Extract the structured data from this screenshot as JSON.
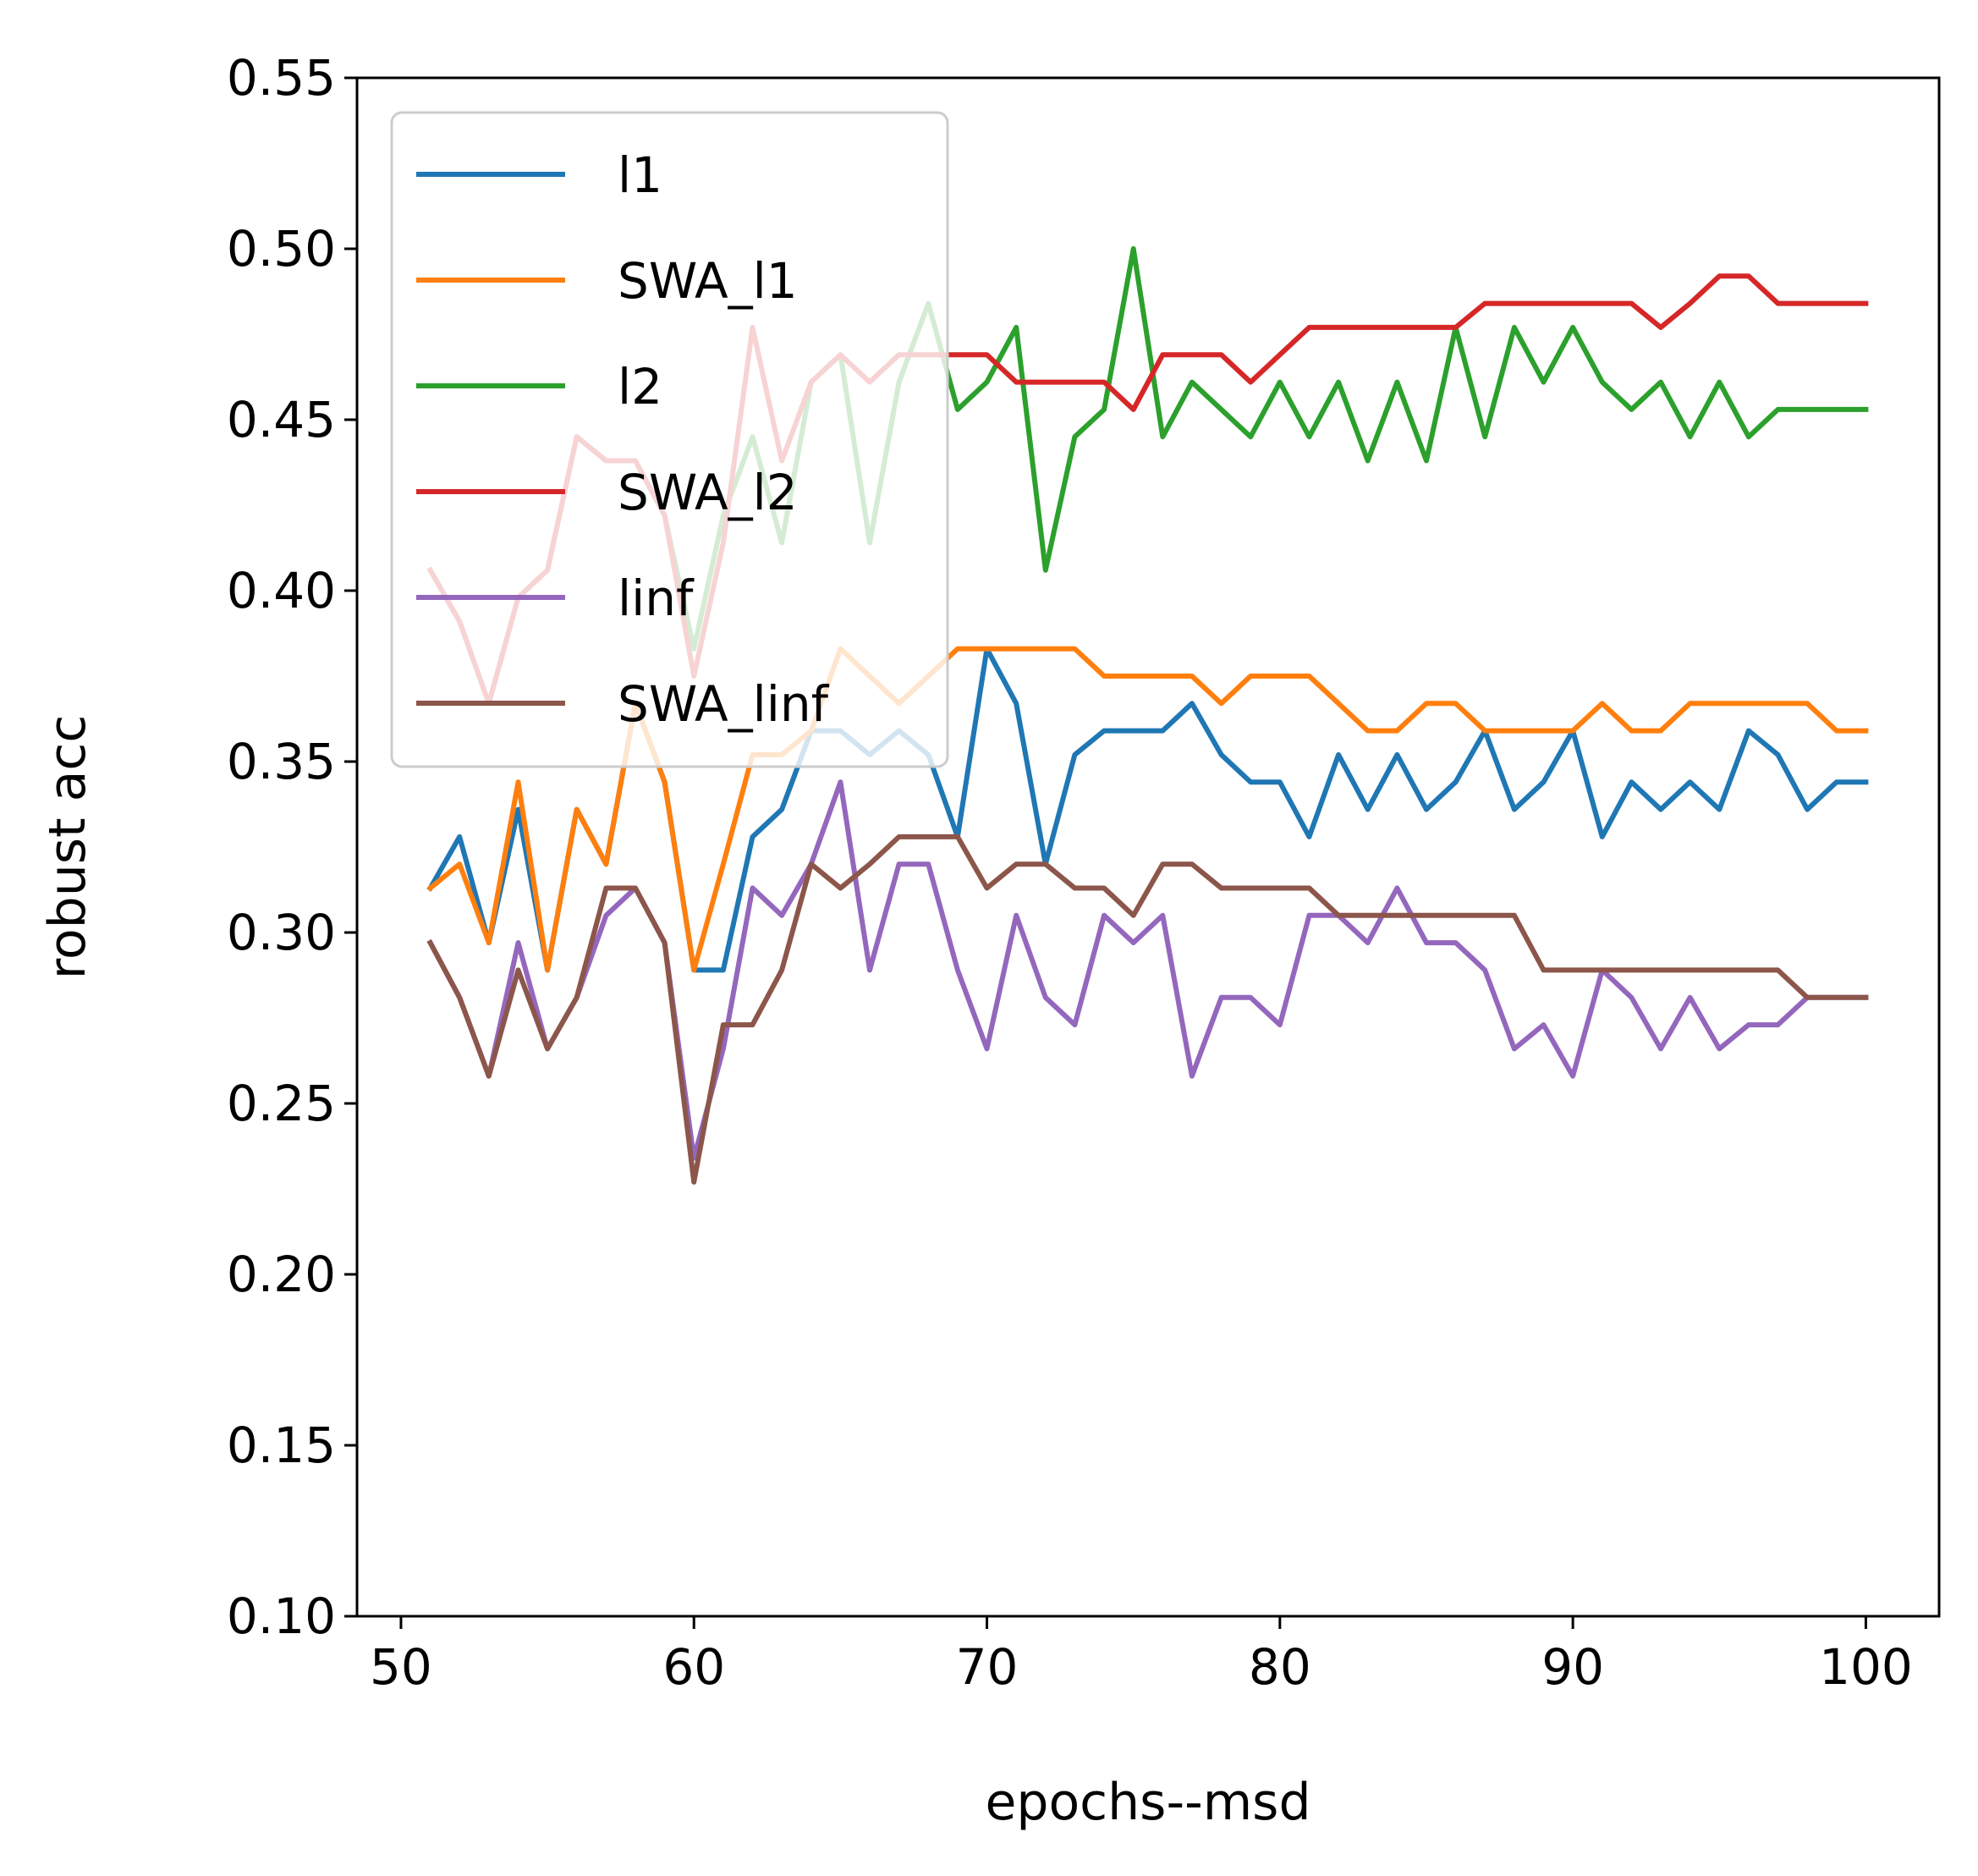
{
  "chart_data": {
    "type": "line",
    "title": "",
    "xlabel": "epochs--msd",
    "ylabel": "robust acc",
    "xlim": [
      48.5,
      102.5
    ],
    "ylim": [
      0.1,
      0.55
    ],
    "xticks": [
      50,
      60,
      70,
      80,
      90,
      100
    ],
    "xtick_labels": [
      "50",
      "60",
      "70",
      "80",
      "90",
      "100"
    ],
    "yticks": [
      0.1,
      0.15,
      0.2,
      0.25,
      0.3,
      0.35,
      0.4,
      0.45,
      0.5,
      0.55
    ],
    "ytick_labels": [
      "0.10",
      "0.15",
      "0.20",
      "0.25",
      "0.30",
      "0.35",
      "0.40",
      "0.45",
      "0.50",
      "0.55"
    ],
    "grid": false,
    "legend_position": "top-left",
    "x": [
      51,
      52,
      53,
      54,
      55,
      56,
      57,
      58,
      59,
      60,
      61,
      62,
      63,
      64,
      65,
      66,
      67,
      68,
      69,
      70,
      71,
      72,
      73,
      74,
      75,
      76,
      77,
      78,
      79,
      80,
      81,
      82,
      83,
      84,
      85,
      86,
      87,
      88,
      89,
      90,
      91,
      92,
      93,
      94,
      95,
      96,
      97,
      98,
      99,
      100
    ],
    "series": [
      {
        "name": "l1",
        "color": "#1f77b4",
        "values": [
          0.313,
          0.328,
          0.297,
          0.336,
          0.289,
          0.336,
          0.32,
          0.367,
          0.344,
          0.289,
          0.289,
          0.328,
          0.336,
          0.359,
          0.359,
          0.352,
          0.359,
          0.352,
          0.328,
          0.383,
          0.367,
          0.32,
          0.352,
          0.359,
          0.359,
          0.359,
          0.367,
          0.352,
          0.344,
          0.344,
          0.328,
          0.352,
          0.336,
          0.352,
          0.336,
          0.344,
          0.359,
          0.336,
          0.344,
          0.359,
          0.328,
          0.344,
          0.336,
          0.344,
          0.336,
          0.359,
          0.352,
          0.336,
          0.344,
          0.344
        ]
      },
      {
        "name": "SWA_l1",
        "color": "#ff7f0e",
        "values": [
          0.313,
          0.32,
          0.297,
          0.344,
          0.289,
          0.336,
          0.32,
          0.367,
          0.344,
          0.289,
          0.32,
          0.352,
          0.352,
          0.359,
          0.383,
          0.375,
          0.367,
          0.375,
          0.383,
          0.383,
          0.383,
          0.383,
          0.383,
          0.375,
          0.375,
          0.375,
          0.375,
          0.367,
          0.375,
          0.375,
          0.375,
          0.367,
          0.359,
          0.359,
          0.367,
          0.367,
          0.359,
          0.359,
          0.359,
          0.359,
          0.367,
          0.359,
          0.359,
          0.367,
          0.367,
          0.367,
          0.367,
          0.367,
          0.359,
          0.359
        ]
      },
      {
        "name": "l2",
        "color": "#2ca02c",
        "values": [
          0.406,
          0.391,
          0.367,
          0.398,
          0.406,
          0.445,
          0.438,
          0.438,
          0.422,
          0.383,
          0.422,
          0.445,
          0.414,
          0.461,
          0.469,
          0.414,
          0.461,
          0.484,
          0.453,
          0.461,
          0.477,
          0.406,
          0.445,
          0.453,
          0.5,
          0.445,
          0.461,
          0.453,
          0.445,
          0.461,
          0.445,
          0.461,
          0.438,
          0.461,
          0.438,
          0.477,
          0.445,
          0.477,
          0.461,
          0.477,
          0.461,
          0.453,
          0.461,
          0.445,
          0.461,
          0.445,
          0.453,
          0.453,
          0.453,
          0.453
        ]
      },
      {
        "name": "SWA_l2",
        "color": "#d62728",
        "values": [
          0.406,
          0.391,
          0.367,
          0.398,
          0.406,
          0.445,
          0.438,
          0.438,
          0.422,
          0.375,
          0.414,
          0.477,
          0.438,
          0.461,
          0.469,
          0.461,
          0.469,
          0.469,
          0.469,
          0.469,
          0.461,
          0.461,
          0.461,
          0.461,
          0.453,
          0.469,
          0.469,
          0.469,
          0.461,
          0.469,
          0.477,
          0.477,
          0.477,
          0.477,
          0.477,
          0.477,
          0.484,
          0.484,
          0.484,
          0.484,
          0.484,
          0.484,
          0.477,
          0.484,
          0.492,
          0.492,
          0.484,
          0.484,
          0.484,
          0.484
        ]
      },
      {
        "name": "linf",
        "color": "#9467bd",
        "values": [
          0.297,
          0.281,
          0.258,
          0.297,
          0.266,
          0.281,
          0.305,
          0.313,
          0.297,
          0.234,
          0.266,
          0.313,
          0.305,
          0.32,
          0.344,
          0.289,
          0.32,
          0.32,
          0.289,
          0.266,
          0.305,
          0.281,
          0.273,
          0.305,
          0.297,
          0.305,
          0.258,
          0.281,
          0.281,
          0.273,
          0.305,
          0.305,
          0.297,
          0.313,
          0.297,
          0.297,
          0.289,
          0.266,
          0.273,
          0.258,
          0.289,
          0.281,
          0.266,
          0.281,
          0.266,
          0.273,
          0.273,
          0.281,
          0.281,
          0.281
        ]
      },
      {
        "name": "SWA_linf",
        "color": "#8c564b",
        "values": [
          0.297,
          0.281,
          0.258,
          0.289,
          0.266,
          0.281,
          0.313,
          0.313,
          0.297,
          0.227,
          0.273,
          0.273,
          0.289,
          0.32,
          0.313,
          0.32,
          0.328,
          0.328,
          0.328,
          0.313,
          0.32,
          0.32,
          0.313,
          0.313,
          0.305,
          0.32,
          0.32,
          0.313,
          0.313,
          0.313,
          0.313,
          0.305,
          0.305,
          0.305,
          0.305,
          0.305,
          0.305,
          0.305,
          0.289,
          0.289,
          0.289,
          0.289,
          0.289,
          0.289,
          0.289,
          0.289,
          0.289,
          0.281,
          0.281,
          0.281
        ]
      }
    ]
  }
}
